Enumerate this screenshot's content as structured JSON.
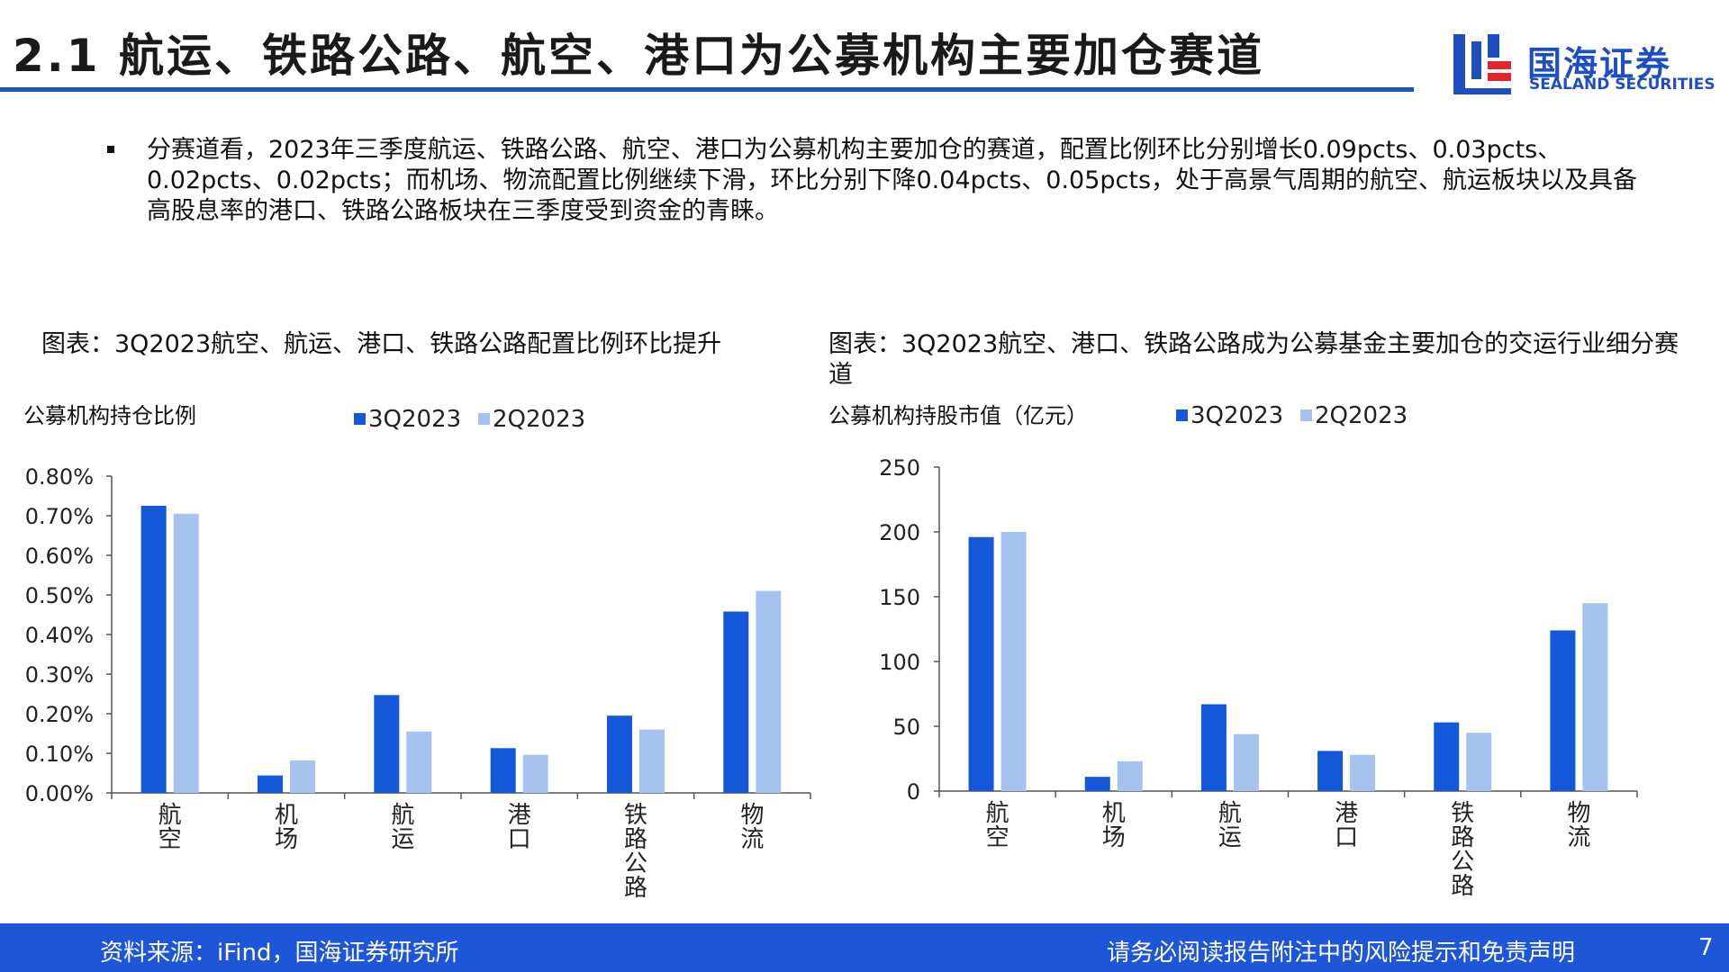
{
  "page": {
    "title": "2.1 航运、铁路公路、航空、港口为公募机构主要加仓赛道",
    "bullet": "分赛道看，2023年三季度航运、铁路公路、航空、港口为公募机构主要加仓的赛道，配置比例环比分别增长0.09pcts、0.03pcts、0.02pcts、0.02pcts；而机场、物流配置比例继续下滑，环比分别下降0.04pcts、0.05pcts，处于高景气周期的航空、航运板块以及具备高股息率的港口、铁路公路板块在三季度受到资金的青睐。"
  },
  "logo": {
    "cn": "国海证券",
    "en": "SEALAND SECURITIES",
    "mark_colors": [
      "#1f4fbf",
      "#e0282c"
    ]
  },
  "footer": {
    "source": "资料来源：iFind，国海证券研究所",
    "disclaimer": "请务必阅读报告附注中的风险提示和免责声明",
    "page_number": "7"
  },
  "colors": {
    "accent": "#1f55c8",
    "series_3q": "#1358d8",
    "series_2q": "#a6c3ef",
    "footer_bg": "#1d56d6"
  },
  "chart_data": [
    {
      "type": "bar",
      "caption": "图表：3Q2023航空、航运、港口、铁路公路配置比例环比提升",
      "title": "",
      "ylabel": "公募机构持仓比例",
      "xlabel": "",
      "categories": [
        "航空",
        "机场",
        "航运",
        "港口",
        "铁路公路",
        "物流"
      ],
      "series": [
        {
          "name": "3Q2023",
          "values": [
            0.725,
            0.044,
            0.247,
            0.113,
            0.195,
            0.458
          ]
        },
        {
          "name": "2Q2023",
          "values": [
            0.705,
            0.082,
            0.155,
            0.096,
            0.16,
            0.51
          ]
        }
      ],
      "ylim": [
        0,
        0.8
      ],
      "yticks": [
        0,
        0.1,
        0.2,
        0.3,
        0.4,
        0.5,
        0.6,
        0.7,
        0.8
      ],
      "ytick_labels": [
        "0.00%",
        "0.10%",
        "0.20%",
        "0.30%",
        "0.40%",
        "0.50%",
        "0.60%",
        "0.70%",
        "0.80%"
      ],
      "legend": "top",
      "grid": false
    },
    {
      "type": "bar",
      "caption": "图表：3Q2023航空、港口、铁路公路成为公募基金主要加仓的交运行业细分赛道",
      "title": "",
      "ylabel": "公募机构持股市值（亿元）",
      "xlabel": "",
      "categories": [
        "航空",
        "机场",
        "航运",
        "港口",
        "铁路公路",
        "物流"
      ],
      "series": [
        {
          "name": "3Q2023",
          "values": [
            196,
            11,
            67,
            31,
            53,
            124
          ]
        },
        {
          "name": "2Q2023",
          "values": [
            200,
            23,
            44,
            28,
            45,
            145
          ]
        }
      ],
      "ylim": [
        0,
        250
      ],
      "yticks": [
        0,
        50,
        100,
        150,
        200,
        250
      ],
      "ytick_labels": [
        "0",
        "50",
        "100",
        "150",
        "200",
        "250"
      ],
      "legend": "top",
      "grid": false
    }
  ]
}
